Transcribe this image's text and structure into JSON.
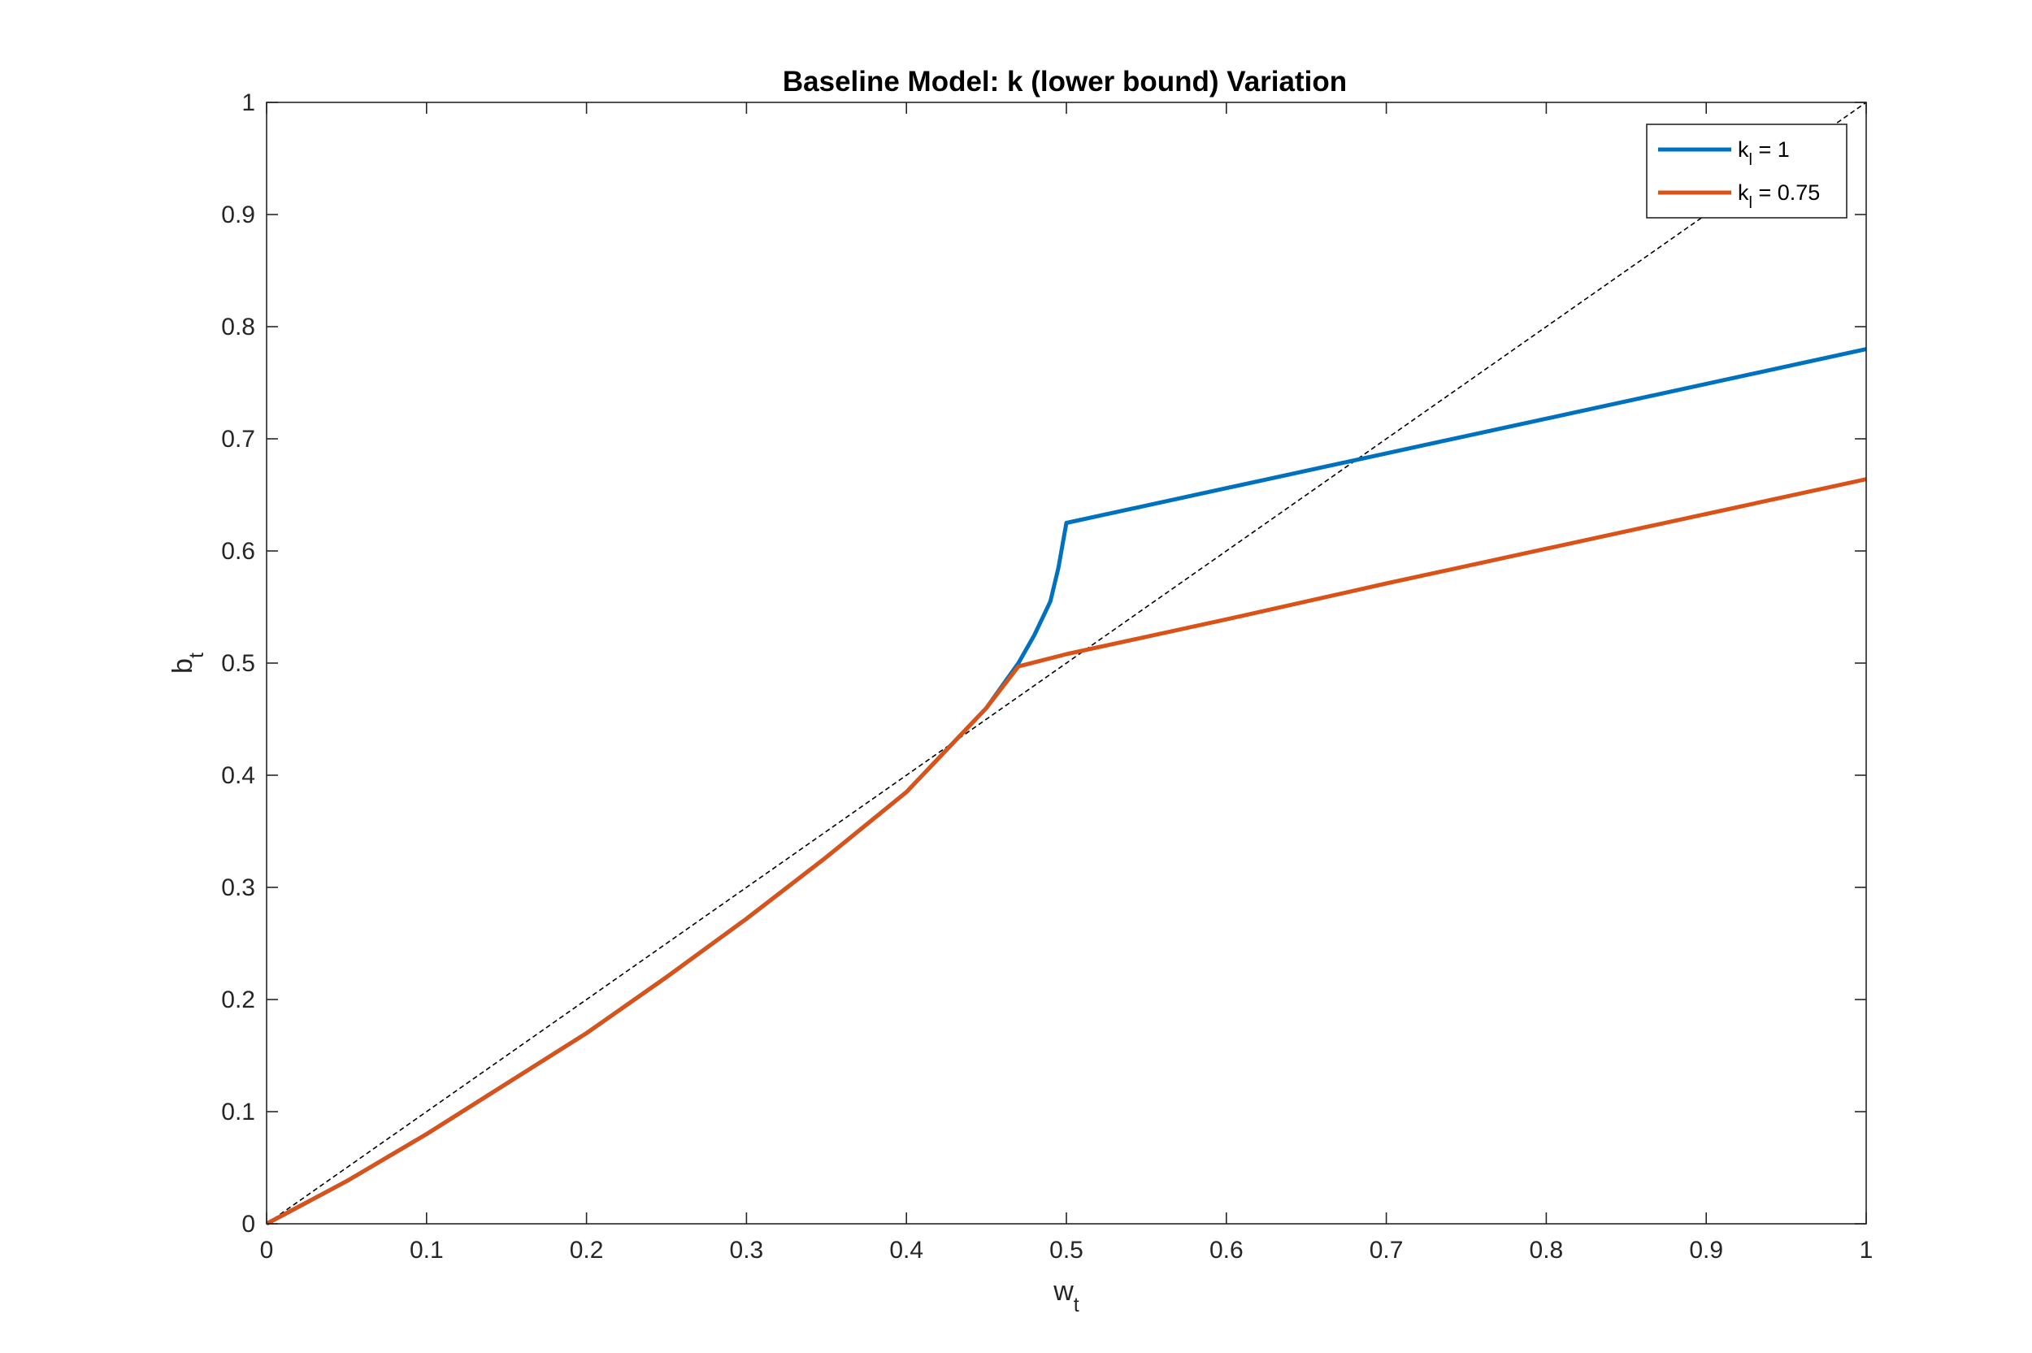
{
  "chart_data": {
    "type": "line",
    "title": "Baseline Model: k (lower bound) Variation",
    "xlabel": {
      "base": "w",
      "sub": "t"
    },
    "ylabel": {
      "base": "b",
      "sub": "t"
    },
    "xlim": [
      0,
      1
    ],
    "ylim": [
      0,
      1
    ],
    "xticks": [
      0,
      0.1,
      0.2,
      0.3,
      0.4,
      0.5,
      0.6,
      0.7,
      0.8,
      0.9,
      1
    ],
    "yticks": [
      0,
      0.1,
      0.2,
      0.3,
      0.4,
      0.5,
      0.6,
      0.7,
      0.8,
      0.9,
      1
    ],
    "xtick_labels": [
      "0",
      "0.1",
      "0.2",
      "0.3",
      "0.4",
      "0.5",
      "0.6",
      "0.7",
      "0.8",
      "0.9",
      "1"
    ],
    "ytick_labels": [
      "0",
      "0.1",
      "0.2",
      "0.3",
      "0.4",
      "0.5",
      "0.6",
      "0.7",
      "0.8",
      "0.9",
      "1"
    ],
    "grid": false,
    "legend_position": "top-right",
    "series": [
      {
        "name": "k_l = 1",
        "legend_base": "k",
        "legend_sub": "l",
        "legend_rest": " = 1",
        "color": "#0072BD",
        "x": [
          0,
          0.05,
          0.1,
          0.15,
          0.2,
          0.25,
          0.3,
          0.35,
          0.4,
          0.43,
          0.45,
          0.47,
          0.48,
          0.49,
          0.495,
          0.5,
          0.5,
          0.6,
          0.7,
          0.8,
          0.9,
          1.0
        ],
        "y": [
          0,
          0.038,
          0.08,
          0.125,
          0.17,
          0.22,
          0.272,
          0.327,
          0.385,
          0.43,
          0.46,
          0.5,
          0.525,
          0.555,
          0.585,
          0.625,
          0.625,
          0.656,
          0.687,
          0.718,
          0.749,
          0.78
        ]
      },
      {
        "name": "k_l = 0.75",
        "legend_base": "k",
        "legend_sub": "l",
        "legend_rest": " = 0.75",
        "color": "#D95319",
        "x": [
          0,
          0.05,
          0.1,
          0.15,
          0.2,
          0.25,
          0.3,
          0.35,
          0.4,
          0.43,
          0.45,
          0.47,
          0.5,
          0.6,
          0.7,
          0.8,
          0.9,
          1.0
        ],
        "y": [
          0,
          0.038,
          0.08,
          0.125,
          0.17,
          0.22,
          0.272,
          0.327,
          0.385,
          0.43,
          0.46,
          0.497,
          0.508,
          0.539,
          0.571,
          0.602,
          0.633,
          0.664
        ]
      }
    ],
    "reference_line": {
      "style": "dashed",
      "color": "#000000",
      "x": [
        0,
        1
      ],
      "y": [
        0,
        1
      ]
    }
  }
}
